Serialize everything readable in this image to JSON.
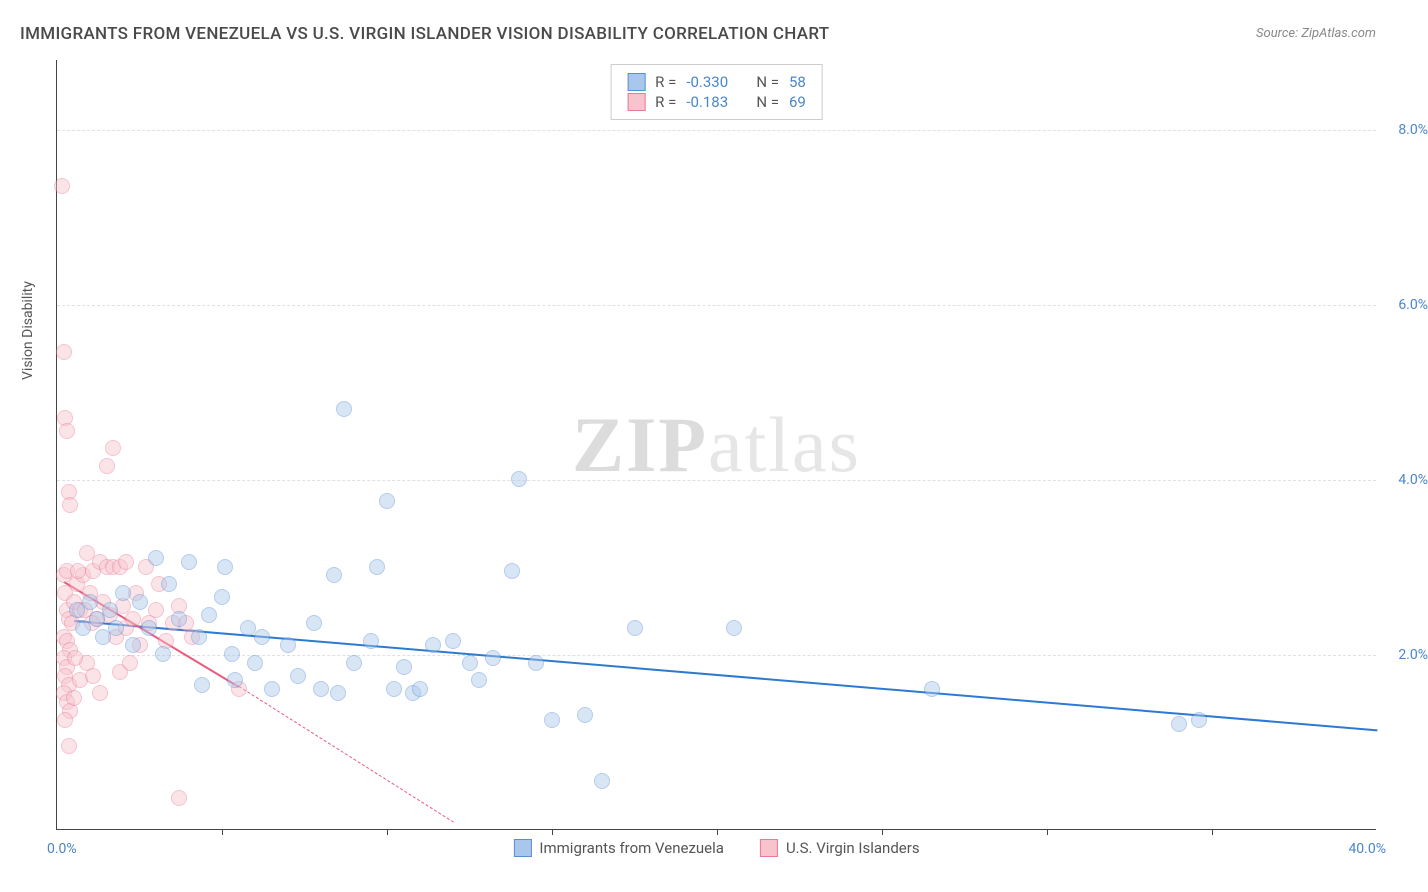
{
  "title": "IMMIGRANTS FROM VENEZUELA VS U.S. VIRGIN ISLANDER VISION DISABILITY CORRELATION CHART",
  "source": "Source: ZipAtlas.com",
  "y_axis_label": "Vision Disability",
  "watermark_bold": "ZIP",
  "watermark_light": "atlas",
  "chart": {
    "type": "scatter",
    "background_color": "#ffffff",
    "grid_color": "#e0e0e0",
    "axis_color": "#444444",
    "xlim": [
      0,
      40
    ],
    "ylim": [
      0,
      8.8
    ],
    "x_origin_label": "0.0%",
    "x_max_label": "40.0%",
    "y_ticks": [
      {
        "value": 2.0,
        "label": "2.0%"
      },
      {
        "value": 4.0,
        "label": "4.0%"
      },
      {
        "value": 6.0,
        "label": "6.0%"
      },
      {
        "value": 8.0,
        "label": "8.0%"
      }
    ],
    "x_tick_positions": [
      5,
      10,
      15,
      20,
      25,
      30,
      35
    ],
    "marker_radius": 8,
    "marker_opacity": 0.45,
    "series": [
      {
        "name": "Immigrants from Venezuela",
        "fill": "#a9c7ea",
        "stroke": "#5b8fd1",
        "line_color": "#2f7ad1",
        "r_label": "R =",
        "r_value": "-0.330",
        "n_label": "N =",
        "n_value": "58",
        "trend": {
          "x1": 0.5,
          "y1": 2.4,
          "x2": 40,
          "y2": 1.15
        },
        "points": [
          [
            0.6,
            2.5
          ],
          [
            0.8,
            2.3
          ],
          [
            1.0,
            2.6
          ],
          [
            1.2,
            2.4
          ],
          [
            1.4,
            2.2
          ],
          [
            1.6,
            2.5
          ],
          [
            1.8,
            2.3
          ],
          [
            2.0,
            2.7
          ],
          [
            2.3,
            2.1
          ],
          [
            2.5,
            2.6
          ],
          [
            2.8,
            2.3
          ],
          [
            3.0,
            3.1
          ],
          [
            3.2,
            2.0
          ],
          [
            3.4,
            2.8
          ],
          [
            3.7,
            2.4
          ],
          [
            4.0,
            3.05
          ],
          [
            4.3,
            2.2
          ],
          [
            4.4,
            1.65
          ],
          [
            4.6,
            2.45
          ],
          [
            5.0,
            2.65
          ],
          [
            5.1,
            3.0
          ],
          [
            5.3,
            2.0
          ],
          [
            5.4,
            1.7
          ],
          [
            5.8,
            2.3
          ],
          [
            6.0,
            1.9
          ],
          [
            6.2,
            2.2
          ],
          [
            6.5,
            1.6
          ],
          [
            7.0,
            2.1
          ],
          [
            7.3,
            1.75
          ],
          [
            7.8,
            2.35
          ],
          [
            8.0,
            1.6
          ],
          [
            8.4,
            2.9
          ],
          [
            8.5,
            1.55
          ],
          [
            8.7,
            4.8
          ],
          [
            9.0,
            1.9
          ],
          [
            9.5,
            2.15
          ],
          [
            9.7,
            3.0
          ],
          [
            10.0,
            3.75
          ],
          [
            10.2,
            1.6
          ],
          [
            10.5,
            1.85
          ],
          [
            10.8,
            1.55
          ],
          [
            11.4,
            2.1
          ],
          [
            12.0,
            2.15
          ],
          [
            12.5,
            1.9
          ],
          [
            13.2,
            1.95
          ],
          [
            14.0,
            4.0
          ],
          [
            14.5,
            1.9
          ],
          [
            15.0,
            1.25
          ],
          [
            16.0,
            1.3
          ],
          [
            16.5,
            0.55
          ],
          [
            17.5,
            2.3
          ],
          [
            20.5,
            2.3
          ],
          [
            26.5,
            1.6
          ],
          [
            34.0,
            1.2
          ],
          [
            34.6,
            1.25
          ],
          [
            13.8,
            2.95
          ],
          [
            12.8,
            1.7
          ],
          [
            11.0,
            1.6
          ]
        ]
      },
      {
        "name": "U.S. Virgin Islanders",
        "fill": "#f7c4cd",
        "stroke": "#ea7a96",
        "line_color": "#ea5b80",
        "r_label": "R =",
        "r_value": "-0.183",
        "n_label": "N =",
        "n_value": "69",
        "trend_solid": {
          "x1": 0.2,
          "y1": 2.85,
          "x2": 5.5,
          "y2": 1.65
        },
        "trend_dash": {
          "x1": 5.5,
          "y1": 1.65,
          "x2": 12.0,
          "y2": 0.1
        },
        "points": [
          [
            0.15,
            7.35
          ],
          [
            0.2,
            5.45
          ],
          [
            0.25,
            4.7
          ],
          [
            0.3,
            4.55
          ],
          [
            0.35,
            3.85
          ],
          [
            0.4,
            3.7
          ],
          [
            0.2,
            2.9
          ],
          [
            0.25,
            2.7
          ],
          [
            0.3,
            2.5
          ],
          [
            0.35,
            2.4
          ],
          [
            0.2,
            2.2
          ],
          [
            0.3,
            2.15
          ],
          [
            0.4,
            2.05
          ],
          [
            0.2,
            1.95
          ],
          [
            0.3,
            1.85
          ],
          [
            0.25,
            1.75
          ],
          [
            0.35,
            1.65
          ],
          [
            0.2,
            1.55
          ],
          [
            0.3,
            1.45
          ],
          [
            0.4,
            1.35
          ],
          [
            0.25,
            1.25
          ],
          [
            0.35,
            0.95
          ],
          [
            0.3,
            2.95
          ],
          [
            0.5,
            2.6
          ],
          [
            0.6,
            2.8
          ],
          [
            0.7,
            2.5
          ],
          [
            0.8,
            2.9
          ],
          [
            0.9,
            3.15
          ],
          [
            1.0,
            2.7
          ],
          [
            1.1,
            2.95
          ],
          [
            1.2,
            2.4
          ],
          [
            1.3,
            3.05
          ],
          [
            1.4,
            2.6
          ],
          [
            1.5,
            4.15
          ],
          [
            1.6,
            2.45
          ],
          [
            1.7,
            4.35
          ],
          [
            1.8,
            2.2
          ],
          [
            1.9,
            1.8
          ],
          [
            2.0,
            2.55
          ],
          [
            2.1,
            2.3
          ],
          [
            2.2,
            1.9
          ],
          [
            2.3,
            2.4
          ],
          [
            2.4,
            2.7
          ],
          [
            2.5,
            2.1
          ],
          [
            2.7,
            3.0
          ],
          [
            2.8,
            2.35
          ],
          [
            3.0,
            2.5
          ],
          [
            3.1,
            2.8
          ],
          [
            3.3,
            2.15
          ],
          [
            3.5,
            2.35
          ],
          [
            3.7,
            2.55
          ],
          [
            3.9,
            2.35
          ],
          [
            4.1,
            2.2
          ],
          [
            0.5,
            1.5
          ],
          [
            0.7,
            1.7
          ],
          [
            0.9,
            1.9
          ],
          [
            1.1,
            1.75
          ],
          [
            1.3,
            1.55
          ],
          [
            1.5,
            3.0
          ],
          [
            1.7,
            3.0
          ],
          [
            1.9,
            3.0
          ],
          [
            2.1,
            3.05
          ],
          [
            0.45,
            2.35
          ],
          [
            0.65,
            2.95
          ],
          [
            0.85,
            2.5
          ],
          [
            1.05,
            2.35
          ],
          [
            3.7,
            0.35
          ],
          [
            5.5,
            1.6
          ],
          [
            0.55,
            1.95
          ]
        ]
      }
    ]
  },
  "legend_bottom": [
    {
      "label": "Immigrants from Venezuela",
      "fill": "#a9c7ea",
      "stroke": "#5b8fd1"
    },
    {
      "label": "U.S. Virgin Islanders",
      "fill": "#f7c4cd",
      "stroke": "#ea7a96"
    }
  ]
}
